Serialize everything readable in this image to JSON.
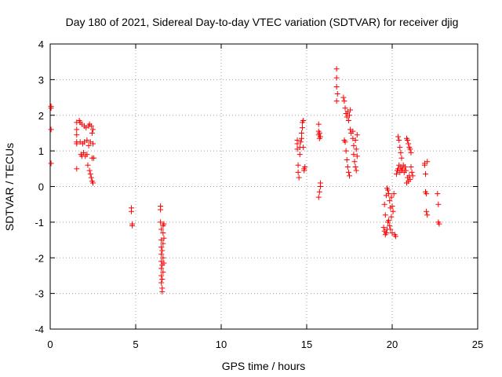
{
  "chart_data": {
    "type": "scatter",
    "title": "Day 180 of 2021, Sidereal Day-to-day VTEC variation (SDTVAR) for receiver djig",
    "xlabel": "GPS time / hours",
    "ylabel": "SDTVAR / TECUs",
    "xlim": [
      0,
      25
    ],
    "ylim": [
      -4,
      4
    ],
    "xticks": [
      0,
      5,
      10,
      15,
      20,
      25
    ],
    "yticks": [
      -4,
      -3,
      -2,
      -1,
      0,
      1,
      2,
      3,
      4
    ],
    "grid": true,
    "marker": "+",
    "color": "#ff0000",
    "series": [
      {
        "name": "SDTVAR",
        "points": [
          [
            0.05,
            2.25
          ],
          [
            0.05,
            2.2
          ],
          [
            0.05,
            1.6
          ],
          [
            0.05,
            0.65
          ],
          [
            1.55,
            1.8
          ],
          [
            1.55,
            1.6
          ],
          [
            1.55,
            1.45
          ],
          [
            1.55,
            1.25
          ],
          [
            1.55,
            1.2
          ],
          [
            1.55,
            0.5
          ],
          [
            1.7,
            1.85
          ],
          [
            1.75,
            1.8
          ],
          [
            1.75,
            1.25
          ],
          [
            1.8,
            0.9
          ],
          [
            1.85,
            0.85
          ],
          [
            1.85,
            1.75
          ],
          [
            1.9,
            1.2
          ],
          [
            1.95,
            0.95
          ],
          [
            2.0,
            1.7
          ],
          [
            2.0,
            1.25
          ],
          [
            2.05,
            0.85
          ],
          [
            2.1,
            1.65
          ],
          [
            2.15,
            1.3
          ],
          [
            2.15,
            0.9
          ],
          [
            2.2,
            0.6
          ],
          [
            2.25,
            1.7
          ],
          [
            2.25,
            1.15
          ],
          [
            2.3,
            0.45
          ],
          [
            2.3,
            1.75
          ],
          [
            2.35,
            0.35
          ],
          [
            2.35,
            1.25
          ],
          [
            2.4,
            0.25
          ],
          [
            2.4,
            1.7
          ],
          [
            2.45,
            0.15
          ],
          [
            2.45,
            0.8
          ],
          [
            2.45,
            1.5
          ],
          [
            2.5,
            0.1
          ],
          [
            2.5,
            1.2
          ],
          [
            2.5,
            1.6
          ],
          [
            2.55,
            0.8
          ],
          [
            4.75,
            -0.6
          ],
          [
            4.75,
            -0.7
          ],
          [
            4.8,
            -1.05
          ],
          [
            4.8,
            -1.1
          ],
          [
            6.45,
            -0.55
          ],
          [
            6.45,
            -0.65
          ],
          [
            6.45,
            -1.0
          ],
          [
            6.5,
            -1.2
          ],
          [
            6.5,
            -1.5
          ],
          [
            6.5,
            -1.7
          ],
          [
            6.5,
            -1.9
          ],
          [
            6.5,
            -2.1
          ],
          [
            6.5,
            -2.3
          ],
          [
            6.5,
            -2.5
          ],
          [
            6.5,
            -2.7
          ],
          [
            6.55,
            -2.85
          ],
          [
            6.55,
            -2.95
          ],
          [
            6.55,
            -2.6
          ],
          [
            6.55,
            -2.2
          ],
          [
            6.55,
            -1.8
          ],
          [
            6.6,
            -1.1
          ],
          [
            6.6,
            -1.3
          ],
          [
            6.6,
            -1.6
          ],
          [
            6.6,
            -2.0
          ],
          [
            6.6,
            -2.4
          ],
          [
            6.65,
            -1.05
          ],
          [
            6.65,
            -2.15
          ],
          [
            6.65,
            -1.45
          ],
          [
            14.45,
            1.3
          ],
          [
            14.45,
            1.2
          ],
          [
            14.45,
            1.05
          ],
          [
            14.5,
            0.6
          ],
          [
            14.5,
            0.4
          ],
          [
            14.55,
            0.25
          ],
          [
            14.6,
            0.9
          ],
          [
            14.6,
            1.1
          ],
          [
            14.65,
            1.25
          ],
          [
            14.7,
            1.35
          ],
          [
            14.7,
            1.5
          ],
          [
            14.75,
            1.65
          ],
          [
            14.75,
            1.8
          ],
          [
            14.8,
            1.85
          ],
          [
            14.8,
            1.1
          ],
          [
            14.85,
            0.5
          ],
          [
            14.85,
            0.45
          ],
          [
            14.9,
            0.55
          ],
          [
            15.7,
            1.75
          ],
          [
            15.7,
            1.55
          ],
          [
            15.7,
            1.45
          ],
          [
            15.75,
            1.35
          ],
          [
            15.75,
            1.5
          ],
          [
            15.8,
            1.4
          ],
          [
            15.7,
            -0.3
          ],
          [
            15.75,
            -0.15
          ],
          [
            15.8,
            0.0
          ],
          [
            15.8,
            0.1
          ],
          [
            16.75,
            3.3
          ],
          [
            16.75,
            3.05
          ],
          [
            16.75,
            2.8
          ],
          [
            16.75,
            2.4
          ],
          [
            16.8,
            2.6
          ],
          [
            17.15,
            2.5
          ],
          [
            17.2,
            2.4
          ],
          [
            17.2,
            1.3
          ],
          [
            17.25,
            2.2
          ],
          [
            17.25,
            1.25
          ],
          [
            17.3,
            2.05
          ],
          [
            17.3,
            1.0
          ],
          [
            17.35,
            1.95
          ],
          [
            17.35,
            0.75
          ],
          [
            17.4,
            2.1
          ],
          [
            17.4,
            0.55
          ],
          [
            17.45,
            1.85
          ],
          [
            17.45,
            0.4
          ],
          [
            17.5,
            2.0
          ],
          [
            17.5,
            0.3
          ],
          [
            17.55,
            2.15
          ],
          [
            17.55,
            1.6
          ],
          [
            17.6,
            1.5
          ],
          [
            17.7,
            1.55
          ],
          [
            17.7,
            1.35
          ],
          [
            17.75,
            1.15
          ],
          [
            17.75,
            0.9
          ],
          [
            17.8,
            0.7
          ],
          [
            17.85,
            0.55
          ],
          [
            17.85,
            1.3
          ],
          [
            17.9,
            1.05
          ],
          [
            17.9,
            0.45
          ],
          [
            17.95,
            0.85
          ],
          [
            17.95,
            1.45
          ],
          [
            19.5,
            -1.15
          ],
          [
            19.55,
            -1.25
          ],
          [
            19.55,
            -0.5
          ],
          [
            19.6,
            -1.35
          ],
          [
            19.6,
            -0.8
          ],
          [
            19.65,
            -0.25
          ],
          [
            19.65,
            -1.3
          ],
          [
            19.7,
            -0.05
          ],
          [
            19.7,
            -1.2
          ],
          [
            19.75,
            -0.1
          ],
          [
            19.75,
            -1.0
          ],
          [
            19.8,
            -0.2
          ],
          [
            19.8,
            -0.95
          ],
          [
            19.85,
            -0.4
          ],
          [
            19.85,
            -1.1
          ],
          [
            19.9,
            -0.6
          ],
          [
            19.9,
            -1.2
          ],
          [
            19.95,
            -0.85
          ],
          [
            19.95,
            -0.3
          ],
          [
            20.0,
            -0.55
          ],
          [
            20.0,
            -1.3
          ],
          [
            20.05,
            -0.7
          ],
          [
            20.1,
            -0.2
          ],
          [
            20.15,
            -1.35
          ],
          [
            20.2,
            -1.4
          ],
          [
            20.25,
            0.35
          ],
          [
            20.3,
            0.45
          ],
          [
            20.35,
            0.5
          ],
          [
            20.35,
            1.4
          ],
          [
            20.4,
            0.6
          ],
          [
            20.4,
            1.3
          ],
          [
            20.45,
            0.4
          ],
          [
            20.45,
            1.1
          ],
          [
            20.5,
            0.55
          ],
          [
            20.5,
            0.95
          ],
          [
            20.55,
            0.45
          ],
          [
            20.55,
            0.8
          ],
          [
            20.6,
            0.5
          ],
          [
            20.65,
            0.6
          ],
          [
            20.7,
            0.4
          ],
          [
            20.75,
            0.55
          ],
          [
            20.8,
            0.45
          ],
          [
            20.85,
            1.35
          ],
          [
            20.85,
            0.1
          ],
          [
            20.9,
            1.3
          ],
          [
            20.9,
            0.25
          ],
          [
            20.95,
            1.2
          ],
          [
            20.95,
            0.15
          ],
          [
            21.0,
            1.1
          ],
          [
            21.0,
            0.3
          ],
          [
            21.05,
            1.05
          ],
          [
            21.05,
            0.2
          ],
          [
            21.1,
            0.95
          ],
          [
            21.1,
            0.55
          ],
          [
            21.15,
            0.4
          ],
          [
            21.2,
            0.3
          ],
          [
            21.9,
            0.6
          ],
          [
            21.9,
            0.65
          ],
          [
            21.95,
            0.35
          ],
          [
            21.95,
            -0.15
          ],
          [
            22.0,
            -0.2
          ],
          [
            22.0,
            -0.7
          ],
          [
            22.05,
            -0.8
          ],
          [
            22.05,
            0.7
          ],
          [
            22.65,
            -0.2
          ],
          [
            22.7,
            -0.5
          ],
          [
            22.7,
            -1.0
          ],
          [
            22.75,
            -1.05
          ]
        ]
      }
    ]
  }
}
